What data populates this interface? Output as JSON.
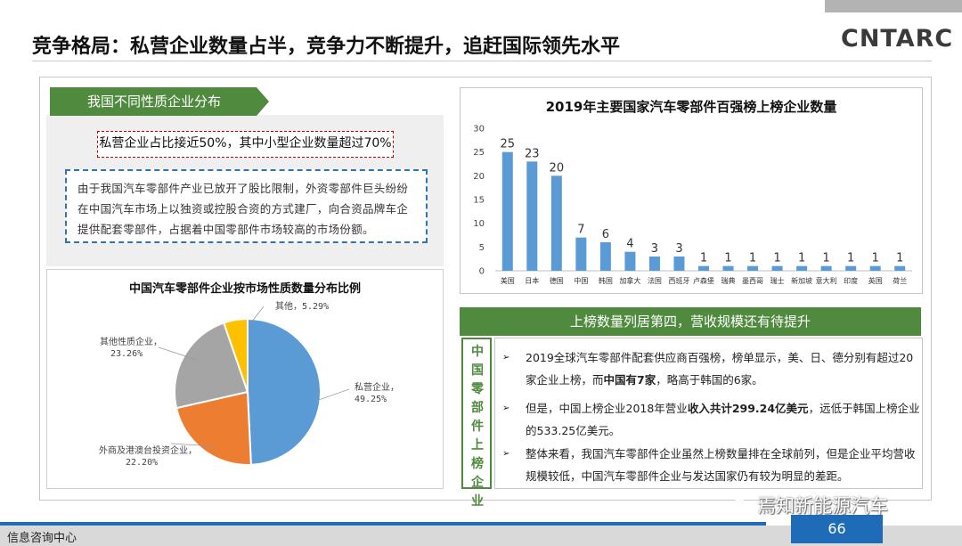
{
  "header": {
    "title": "竞争格局：私营企业数量占半，竞争力不断提升，追赶国际领先水平",
    "logo": "CNTARC"
  },
  "left": {
    "section_tab": "我国不同性质企业分布",
    "highlight": "私营企业占比接近50%，其中小型企业数量超过70%",
    "description": "由于我国汽车零部件产业已放开了股比限制，外资零部件巨头纷纷在中国汽车市场上以独资或控股合资的方式建厂，向合资品牌车企提供配套零部件，占据着中国零部件市场较高的市场份额。"
  },
  "chart_data": [
    {
      "type": "pie",
      "title": "中国汽车零部件企业按市场性质数量分布比例",
      "slices": [
        {
          "label": "私营企业，",
          "value": 49.25,
          "value_label": "49.25%",
          "color": "#5b9bd5"
        },
        {
          "label": "外商及港澳台投资企业，",
          "value": 22.2,
          "value_label": "22.20%",
          "color": "#ed7d31"
        },
        {
          "label": "其他性质企业，",
          "value": 23.26,
          "value_label": "23.26%",
          "color": "#a5a5a5"
        },
        {
          "label": "其他，",
          "value": 5.29,
          "value_label": "5.29%",
          "color": "#ffc000"
        }
      ]
    },
    {
      "type": "bar",
      "title": "2019年主要国家汽车零部件百强榜上榜企业数量",
      "categories": [
        "美国",
        "日本",
        "德国",
        "中国",
        "韩国",
        "加拿大",
        "法国",
        "西班牙",
        "卢森堡",
        "瑞典",
        "墨西哥",
        "瑞士",
        "新加坡",
        "意大利",
        "印度",
        "英国",
        "荷兰"
      ],
      "tick_labels": [
        "美国",
        "日本",
        "德国",
        "中国",
        "韩国",
        "加拿大",
        "法国",
        "西班牙",
        "卢森堡",
        "瑞典",
        "墨西哥",
        "瑞士",
        "新加坡",
        "意大利",
        "印度",
        "英国",
        "荷兰"
      ],
      "values": [
        25,
        23,
        20,
        7,
        6,
        4,
        3,
        3,
        1,
        1,
        1,
        1,
        1,
        1,
        1,
        1,
        1
      ],
      "ylim": [
        0,
        30
      ],
      "yticks": [
        0,
        5,
        10,
        15,
        20,
        25,
        30
      ],
      "color": "#5b9bd5",
      "grid": false
    }
  ],
  "right": {
    "banner": "上榜数量列居第四，营收规模还有待提升",
    "vertical_label": "中国零部件上榜企业",
    "bullets": [
      {
        "pre": "2019全球汽车零部件配套供应商百强榜，榜单显示，美、日、德分别有超过20家企业上榜，而",
        "bold": "中国有7家",
        "post": "，略高于韩国的6家。"
      },
      {
        "pre": "但是，中国上榜企业2018年营业",
        "bold": "收入共计299.24亿美元",
        "post": "，远低于韩国上榜企业的533.25亿美元。"
      },
      {
        "pre": "整体来看，我国汽车零部件企业虽然上榜数量排在全球前列，但是企业平均营收规模较低，中国汽车零部件企业与发达国家仍有较为明显的差距。",
        "bold": "",
        "post": ""
      }
    ],
    "bullet_symbol": "➢"
  },
  "footer": {
    "left_text": "信息咨询中心",
    "page_number": "66",
    "watermark": "焉知新能源汽车"
  }
}
